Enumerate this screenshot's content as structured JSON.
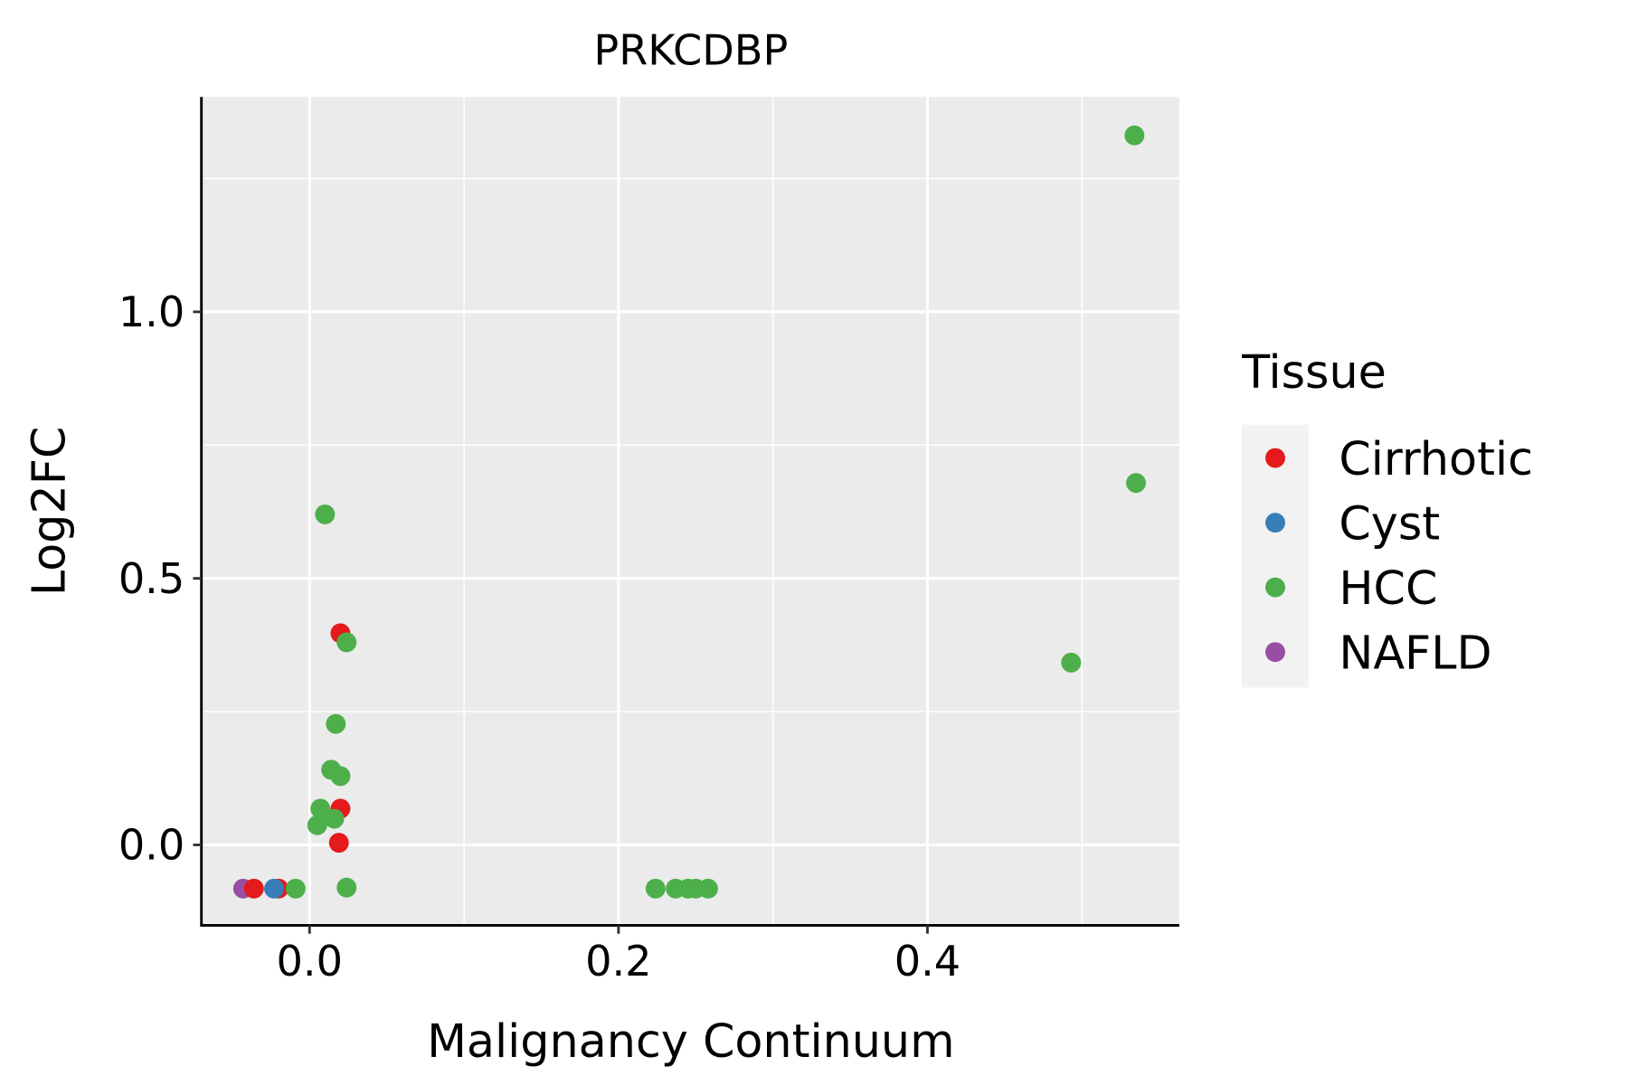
{
  "chart_data": {
    "type": "scatter",
    "title": "PRKCDBP",
    "xlabel": "Malignancy Continuum",
    "ylabel": "Log2FC",
    "xlim": [
      -0.07,
      0.563
    ],
    "ylim": [
      -0.151,
      1.403
    ],
    "xticks": [
      0.0,
      0.2,
      0.4
    ],
    "xtick_labels": [
      "0.0",
      "0.2",
      "0.4"
    ],
    "xminor": [
      0.1,
      0.3,
      0.5
    ],
    "yticks": [
      0.0,
      0.5,
      1.0
    ],
    "ytick_labels": [
      "0.0",
      "0.5",
      "1.0"
    ],
    "yminor": [
      0.25,
      0.75,
      1.25
    ],
    "grid": true,
    "legend": {
      "title": "Tissue",
      "placement": "right",
      "entries": [
        {
          "label": "Cirrhotic",
          "color": "#E41A1C"
        },
        {
          "label": "Cyst",
          "color": "#377EB8"
        },
        {
          "label": "HCC",
          "color": "#4DAF4A"
        },
        {
          "label": "NAFLD",
          "color": "#984EA3"
        }
      ]
    },
    "points": [
      {
        "x": -0.043,
        "y": -0.082,
        "tissue": "NAFLD"
      },
      {
        "x": -0.036,
        "y": -0.082,
        "tissue": "Cirrhotic"
      },
      {
        "x": -0.02,
        "y": -0.082,
        "tissue": "Cirrhotic"
      },
      {
        "x": -0.023,
        "y": -0.082,
        "tissue": "Cyst"
      },
      {
        "x": -0.009,
        "y": -0.082,
        "tissue": "HCC"
      },
      {
        "x": 0.01,
        "y": 0.62,
        "tissue": "HCC"
      },
      {
        "x": 0.02,
        "y": 0.397,
        "tissue": "Cirrhotic"
      },
      {
        "x": 0.024,
        "y": 0.38,
        "tissue": "HCC"
      },
      {
        "x": 0.017,
        "y": 0.227,
        "tissue": "HCC"
      },
      {
        "x": 0.014,
        "y": 0.141,
        "tissue": "HCC"
      },
      {
        "x": 0.02,
        "y": 0.129,
        "tissue": "HCC"
      },
      {
        "x": 0.02,
        "y": 0.068,
        "tissue": "Cirrhotic"
      },
      {
        "x": 0.007,
        "y": 0.068,
        "tissue": "HCC"
      },
      {
        "x": 0.005,
        "y": 0.037,
        "tissue": "HCC"
      },
      {
        "x": 0.016,
        "y": 0.049,
        "tissue": "HCC"
      },
      {
        "x": 0.019,
        "y": 0.004,
        "tissue": "Cirrhotic"
      },
      {
        "x": 0.024,
        "y": -0.08,
        "tissue": "HCC"
      },
      {
        "x": 0.224,
        "y": -0.082,
        "tissue": "HCC"
      },
      {
        "x": 0.237,
        "y": -0.082,
        "tissue": "HCC"
      },
      {
        "x": 0.245,
        "y": -0.082,
        "tissue": "HCC"
      },
      {
        "x": 0.25,
        "y": -0.082,
        "tissue": "HCC"
      },
      {
        "x": 0.258,
        "y": -0.082,
        "tissue": "HCC"
      },
      {
        "x": 0.534,
        "y": 1.331,
        "tissue": "HCC"
      },
      {
        "x": 0.535,
        "y": 0.679,
        "tissue": "HCC"
      },
      {
        "x": 0.493,
        "y": 0.342,
        "tissue": "HCC"
      }
    ]
  }
}
